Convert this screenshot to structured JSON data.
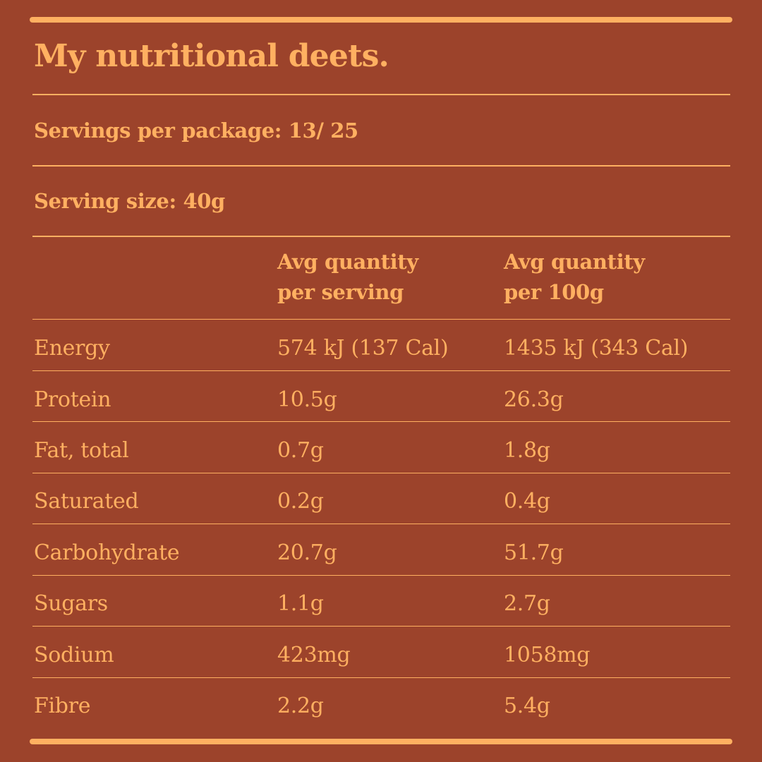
{
  "title": "My nutritional deets.",
  "servings_per_package": "Servings per package: 13/ 25",
  "serving_size": "Serving size: 40g",
  "columns": {
    "per_serving_line1": "Avg quantity",
    "per_serving_line2": "per serving",
    "per_100g_line1": "Avg quantity",
    "per_100g_line2": "per 100g"
  },
  "rows": [
    {
      "label": "Energy",
      "per_serving": "574 kJ (137 Cal)",
      "per_100g": "1435 kJ (343 Cal)"
    },
    {
      "label": "Protein",
      "per_serving": "10.5g",
      "per_100g": "26.3g"
    },
    {
      "label": "Fat, total",
      "per_serving": "0.7g",
      "per_100g": "1.8g"
    },
    {
      "label": "Saturated",
      "per_serving": "0.2g",
      "per_100g": "0.4g"
    },
    {
      "label": "Carbohydrate",
      "per_serving": "20.7g",
      "per_100g": "51.7g"
    },
    {
      "label": "Sugars",
      "per_serving": "1.1g",
      "per_100g": "2.7g"
    },
    {
      "label": "Sodium",
      "per_serving": "423mg",
      "per_100g": "1058mg"
    },
    {
      "label": "Fibre",
      "per_serving": "2.2g",
      "per_100g": "5.4g"
    }
  ],
  "colors": {
    "background": "#9c432b",
    "text": "#ffb061"
  }
}
